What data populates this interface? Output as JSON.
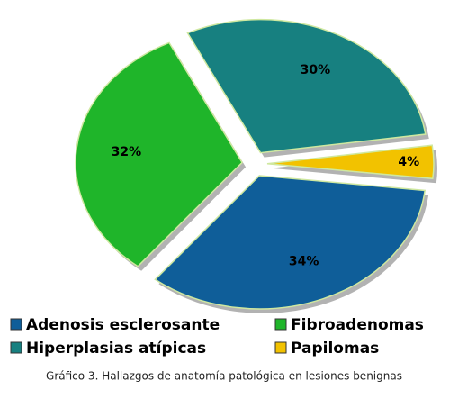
{
  "chart_data": {
    "type": "pie",
    "categories": [
      "Adenosis esclerosante",
      "Fibroadenomas",
      "Hiperplasias atípicas",
      "Papilomas"
    ],
    "values": [
      34,
      32,
      30,
      4
    ],
    "value_labels": [
      "34%",
      "32%",
      "30%",
      "4%"
    ],
    "colors": [
      "#0f5e99",
      "#1fb52a",
      "#178080",
      "#f2c200"
    ],
    "caption": "Gráfico 3. Hallazgos de anatomía patológica en lesiones benignas"
  }
}
